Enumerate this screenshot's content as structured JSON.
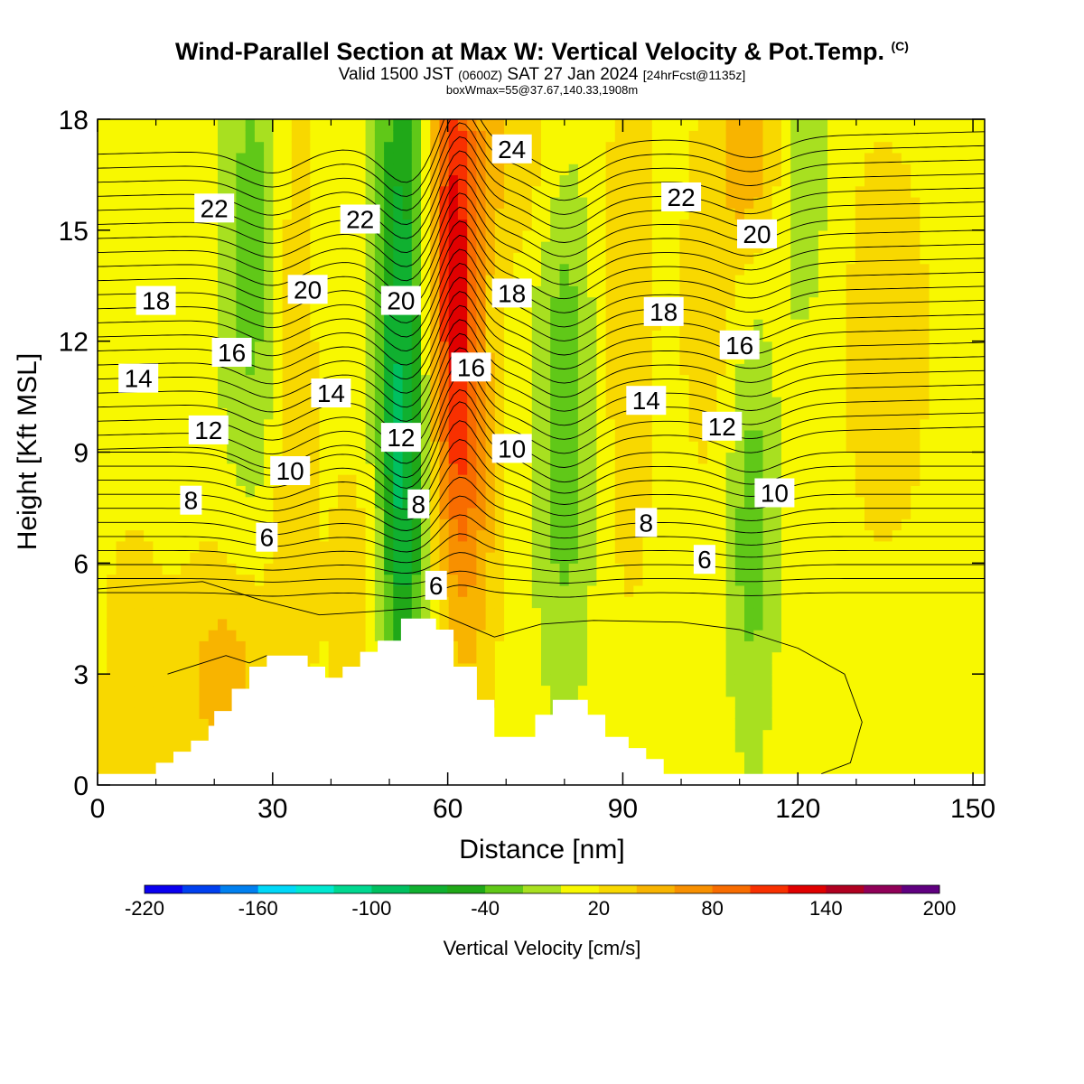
{
  "header": {
    "title": "Wind-Parallel Section at Max W: Vertical Velocity & Pot.Temp.",
    "title_tag": "(C)",
    "sub_valid": "Valid 1500 JST",
    "sub_zulu": "(0600Z)",
    "sub_date": "SAT 27 Jan 2024",
    "sub_fcst": "[24hrFcst@1135z]",
    "box_wmax": "boxWmax=55@37.67,140.33,1908m"
  },
  "chart_data": {
    "type": "heatmap",
    "title": "Wind-Parallel Section at Max W: Vertical Velocity & Pot.Temp.",
    "xlabel": "Distance [nm]",
    "ylabel": "Height [Kft MSL]",
    "xlim": [
      0,
      152
    ],
    "ylim": [
      0,
      18
    ],
    "x_ticks": [
      "0",
      "30",
      "60",
      "90",
      "120",
      "150"
    ],
    "y_ticks": [
      "0",
      "3",
      "6",
      "9",
      "12",
      "15",
      "18"
    ],
    "grid": false,
    "colorbar": {
      "label": "Vertical Velocity [cm/s]",
      "tick_labels": [
        "-220",
        "-160",
        "-100",
        "-40",
        "20",
        "80",
        "140",
        "200"
      ],
      "min": -220,
      "max": 200,
      "step": 20,
      "colors": [
        "#0a00f0",
        "#0040f0",
        "#0080f0",
        "#00d8f8",
        "#00e8d0",
        "#00d890",
        "#00c060",
        "#10b030",
        "#20a818",
        "#60c818",
        "#a8e020",
        "#f8f800",
        "#f8d800",
        "#f8b400",
        "#f89000",
        "#f86c00",
        "#f83000",
        "#e00000",
        "#b00020",
        "#900058",
        "#600080"
      ]
    },
    "vertical_velocity_field": {
      "units": "cm/s",
      "background": 10,
      "features": [
        {
          "x": 6,
          "y": 1.5,
          "sx": 4,
          "sy": 4,
          "w": 25
        },
        {
          "x": 22,
          "y": 2.8,
          "sx": 6,
          "sy": 2.5,
          "w": 40
        },
        {
          "x": 27,
          "y": 14.5,
          "sx": 4,
          "sy": 5,
          "w": -42
        },
        {
          "x": 33,
          "y": 12,
          "sx": 3,
          "sy": 7,
          "w": 30
        },
        {
          "x": 45,
          "y": 5,
          "sx": 4,
          "sy": 3,
          "w": 25
        },
        {
          "x": 52,
          "y": 12.5,
          "sx": 3.2,
          "sy": 6.5,
          "w": -85
        },
        {
          "x": 52,
          "y": 6.5,
          "sx": 2.5,
          "sy": 3,
          "w": -35
        },
        {
          "x": 61,
          "y": 14,
          "sx": 3,
          "sy": 5,
          "w": 105
        },
        {
          "x": 64,
          "y": 8,
          "sx": 3.5,
          "sy": 4,
          "w": 45
        },
        {
          "x": 69,
          "y": 17,
          "sx": 7,
          "sy": 2,
          "w": 30
        },
        {
          "x": 80,
          "y": 10,
          "sx": 3.5,
          "sy": 5,
          "w": -45
        },
        {
          "x": 91,
          "y": 12.5,
          "sx": 3.5,
          "sy": 6,
          "w": 22
        },
        {
          "x": 112,
          "y": 7,
          "sx": 3,
          "sy": 4,
          "w": -42
        },
        {
          "x": 112,
          "y": 17,
          "sx": 4,
          "sy": 2,
          "w": 40
        },
        {
          "x": 121,
          "y": 16.5,
          "sx": 3,
          "sy": 3,
          "w": -32
        },
        {
          "x": 105,
          "y": 13,
          "sx": 4,
          "sy": 4,
          "w": 20
        },
        {
          "x": 135,
          "y": 12,
          "sx": 8,
          "sy": 6,
          "w": 15
        }
      ]
    },
    "terrain": {
      "x": [
        0,
        10,
        10,
        13,
        13,
        16,
        16,
        19,
        19,
        20,
        20,
        23,
        23,
        26,
        26,
        29,
        29,
        32,
        32,
        36,
        36,
        39,
        39,
        42,
        42,
        45,
        45,
        48,
        48,
        52,
        52,
        58,
        58,
        61,
        61,
        65,
        65,
        68,
        68,
        71,
        71,
        75,
        75,
        78,
        78,
        81,
        81,
        84,
        84,
        87,
        87,
        91,
        91,
        94,
        94,
        97,
        97,
        152
      ],
      "height": [
        0.3,
        0.3,
        0.6,
        0.6,
        0.9,
        0.9,
        1.2,
        1.2,
        1.6,
        1.6,
        2.0,
        2.0,
        2.6,
        2.6,
        3.2,
        3.2,
        3.5,
        3.5,
        3.5,
        3.5,
        3.2,
        3.2,
        2.9,
        2.9,
        3.2,
        3.2,
        3.6,
        3.6,
        3.9,
        3.9,
        4.5,
        4.5,
        4.2,
        4.2,
        3.2,
        3.2,
        2.3,
        2.3,
        1.3,
        1.3,
        1.3,
        1.3,
        1.9,
        1.9,
        2.3,
        2.3,
        2.3,
        2.3,
        1.9,
        1.9,
        1.3,
        1.3,
        1.0,
        1.0,
        0.7,
        0.7,
        0.3,
        0.3
      ]
    },
    "potential_temperature_contours": {
      "units": "C",
      "labels": [
        {
          "text": "22",
          "x": 20,
          "y": 15.6
        },
        {
          "text": "22",
          "x": 45,
          "y": 15.3
        },
        {
          "text": "24",
          "x": 71,
          "y": 17.2
        },
        {
          "text": "22",
          "x": 100,
          "y": 15.9
        },
        {
          "text": "20",
          "x": 113,
          "y": 14.9
        },
        {
          "text": "20",
          "x": 36,
          "y": 13.4
        },
        {
          "text": "20",
          "x": 52,
          "y": 13.1
        },
        {
          "text": "18",
          "x": 10,
          "y": 13.1
        },
        {
          "text": "18",
          "x": 71,
          "y": 13.3
        },
        {
          "text": "18",
          "x": 97,
          "y": 12.8
        },
        {
          "text": "16",
          "x": 23,
          "y": 11.7
        },
        {
          "text": "16",
          "x": 64,
          "y": 11.3
        },
        {
          "text": "16",
          "x": 110,
          "y": 11.9
        },
        {
          "text": "14",
          "x": 7,
          "y": 11.0
        },
        {
          "text": "14",
          "x": 40,
          "y": 10.6
        },
        {
          "text": "14",
          "x": 94,
          "y": 10.4
        },
        {
          "text": "12",
          "x": 19,
          "y": 9.6
        },
        {
          "text": "12",
          "x": 52,
          "y": 9.4
        },
        {
          "text": "12",
          "x": 107,
          "y": 9.7
        },
        {
          "text": "10",
          "x": 33,
          "y": 8.5
        },
        {
          "text": "10",
          "x": 71,
          "y": 9.1
        },
        {
          "text": "10",
          "x": 116,
          "y": 7.9
        },
        {
          "text": "8",
          "x": 16,
          "y": 7.7
        },
        {
          "text": "8",
          "x": 55,
          "y": 7.6
        },
        {
          "text": "8",
          "x": 94,
          "y": 7.1
        },
        {
          "text": "6",
          "x": 29,
          "y": 6.7
        },
        {
          "text": "6",
          "x": 58,
          "y": 5.4
        },
        {
          "text": "6",
          "x": 104,
          "y": 6.1
        }
      ]
    }
  }
}
